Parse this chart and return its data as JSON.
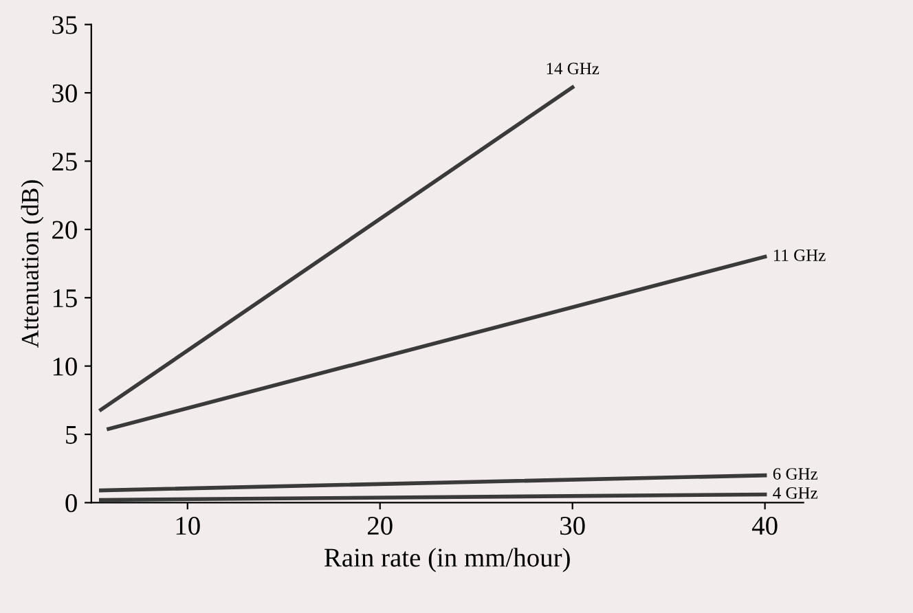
{
  "chart_data": {
    "type": "line",
    "xlabel": "Rain rate (in mm/hour)",
    "ylabel": "Attenuation (dB)",
    "xlim": [
      5,
      42
    ],
    "xticks": [
      10,
      20,
      30,
      40
    ],
    "ylim": [
      0,
      35
    ],
    "yticks": [
      0,
      5,
      10,
      15,
      20,
      25,
      30,
      35
    ],
    "grid": false,
    "legend": false,
    "marker": "none",
    "line_style": "solid",
    "series": [
      {
        "name": "14 GHz",
        "color": "#3a3a3a",
        "x": [
          5.5,
          30
        ],
        "values": [
          6.8,
          30.4
        ]
      },
      {
        "name": "11 GHz",
        "color": "#3a3a3a",
        "x": [
          5.9,
          40
        ],
        "values": [
          5.4,
          18
        ]
      },
      {
        "name": "6 GHz",
        "color": "#3a3a3a",
        "x": [
          5.5,
          40
        ],
        "values": [
          0.9,
          2.0
        ]
      },
      {
        "name": "4 GHz",
        "color": "#3a3a3a",
        "x": [
          5.5,
          40
        ],
        "values": [
          0.2,
          0.6
        ]
      }
    ]
  }
}
